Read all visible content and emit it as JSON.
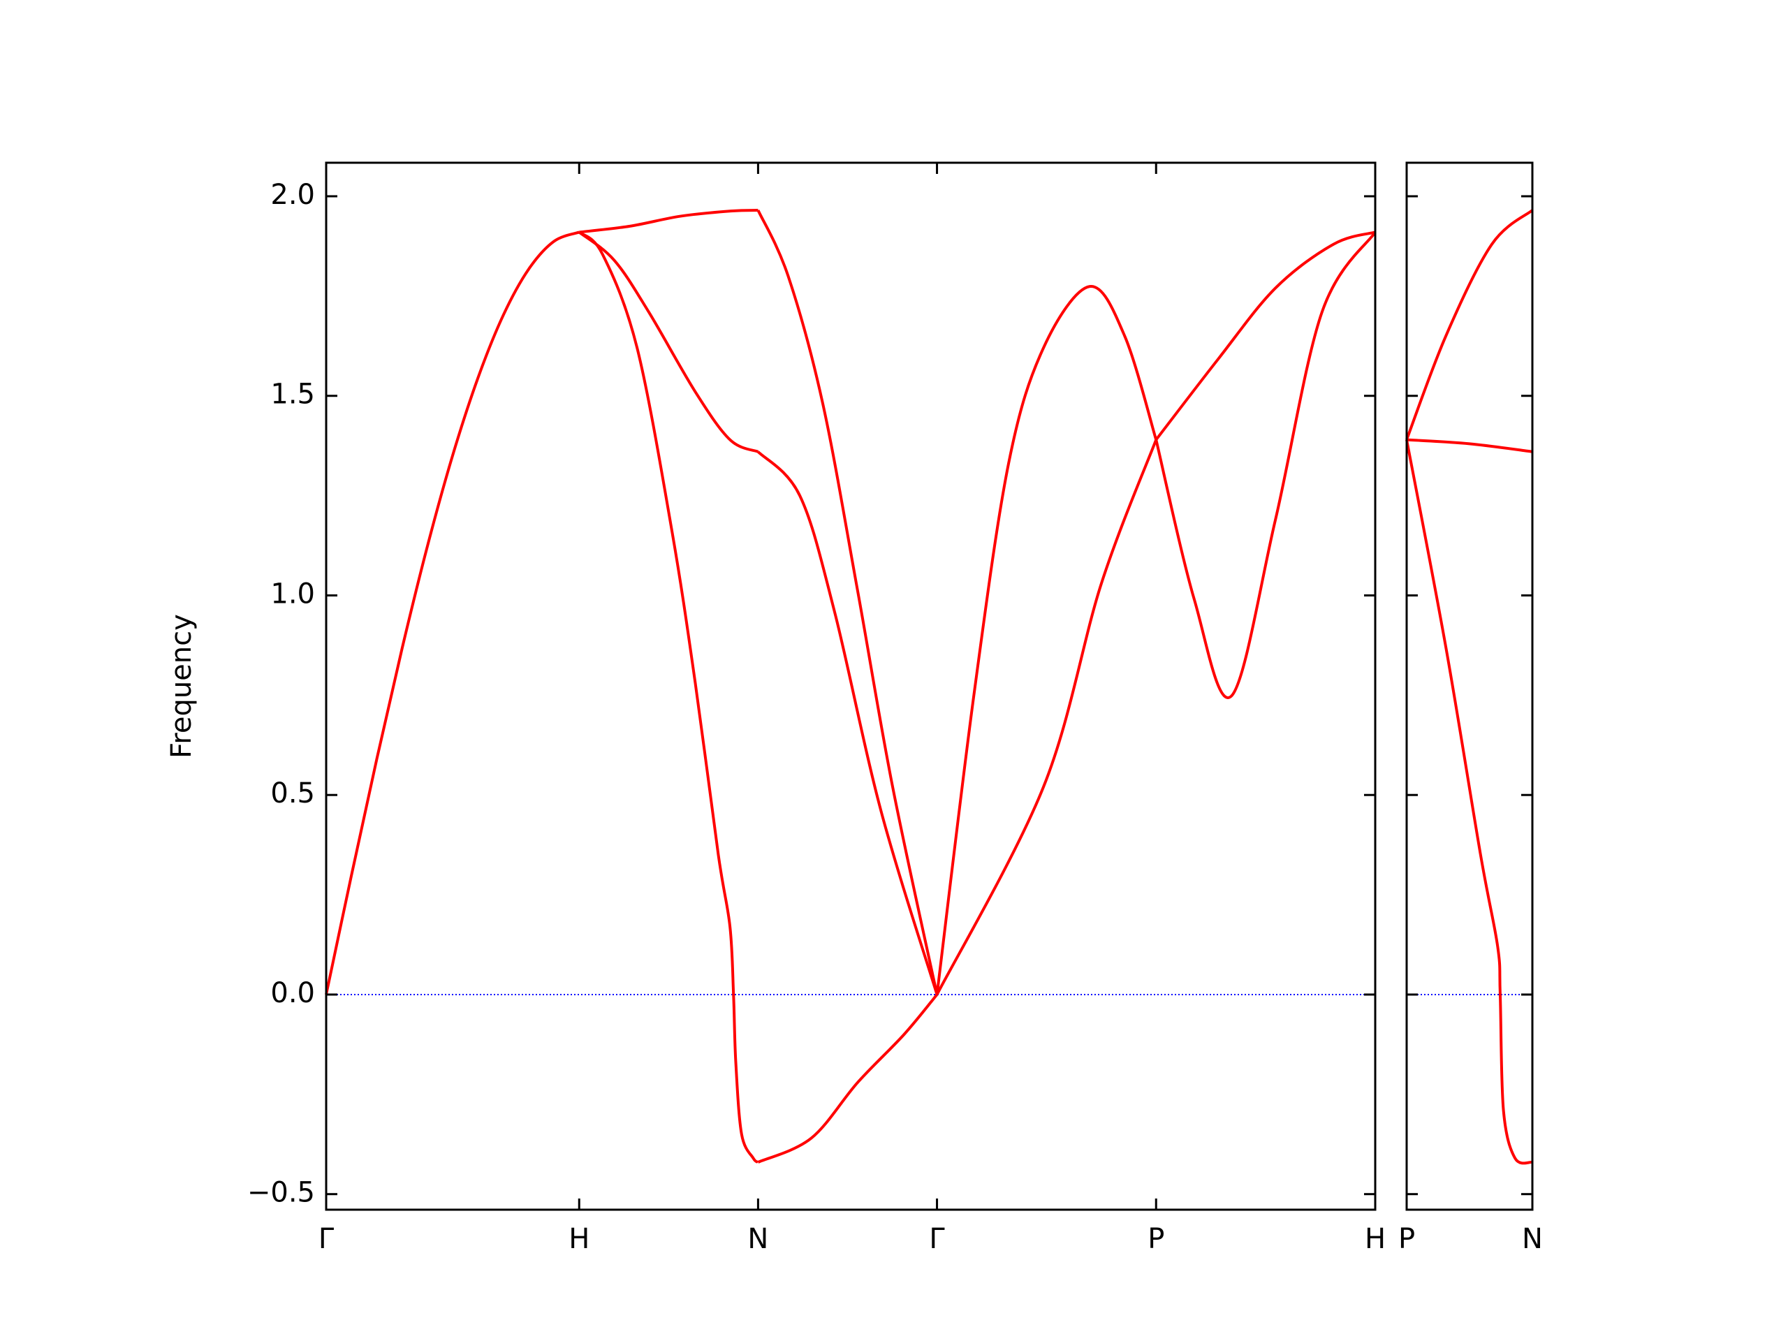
{
  "chart_data": [
    {
      "type": "line",
      "ylabel": "Frequency",
      "xlim": [
        0,
        4.1463
      ],
      "ylim": [
        -0.539,
        2.084
      ],
      "xticks": [
        {
          "value": 0,
          "label": "Γ"
        },
        {
          "value": 1,
          "label": "H"
        },
        {
          "value": 1.7071,
          "label": "N"
        },
        {
          "value": 2.4142,
          "label": "Γ"
        },
        {
          "value": 3.2802,
          "label": "P"
        },
        {
          "value": 4.1463,
          "label": "H"
        }
      ],
      "yticks": [
        {
          "value": -0.5,
          "label": "−0.5"
        },
        {
          "value": 0,
          "label": "0.0"
        },
        {
          "value": 0.5,
          "label": "0.5"
        },
        {
          "value": 1,
          "label": "1.0"
        },
        {
          "value": 1.5,
          "label": "1.5"
        },
        {
          "value": 2,
          "label": "2.0"
        }
      ],
      "show_ytick_labels": true,
      "hline": {
        "y": 0,
        "color": "blue"
      },
      "series": [
        {
          "color": "red",
          "x": [
            0,
            0.1,
            0.2,
            0.3,
            0.4,
            0.5,
            0.6,
            0.7,
            0.8,
            0.9,
            1
          ],
          "values": [
            0,
            0.299,
            0.59,
            0.867,
            1.123,
            1.351,
            1.545,
            1.702,
            1.817,
            1.887,
            1.91
          ]
        },
        {
          "color": "red",
          "x": [
            1,
            1.2,
            1.4,
            1.6,
            1.7071
          ],
          "values": [
            1.91,
            1.925,
            1.95,
            1.963,
            1.965
          ]
        },
        {
          "color": "red",
          "x": [
            1,
            1.138,
            1.275,
            1.459,
            1.596,
            1.7071
          ],
          "values": [
            1.91,
            1.84,
            1.71,
            1.51,
            1.39,
            1.36
          ]
        },
        {
          "color": "red",
          "x": [
            1,
            1.092,
            1.229,
            1.367,
            1.459,
            1.55,
            1.596,
            1.61,
            1.619,
            1.642,
            1.688,
            1.7071
          ],
          "values": [
            1.91,
            1.855,
            1.62,
            1.16,
            0.78,
            0.35,
            0.17,
            0,
            -0.17,
            -0.35,
            -0.41,
            -0.42
          ]
        },
        {
          "color": "red",
          "x": [
            1.7071,
            1.826,
            1.963,
            2.101,
            2.239,
            2.4142
          ],
          "values": [
            1.965,
            1.8,
            1.48,
            1.01,
            0.52,
            0
          ]
        },
        {
          "color": "red",
          "x": [
            1.7071,
            1.872,
            2.009,
            2.193,
            2.4142
          ],
          "values": [
            1.36,
            1.25,
            0.96,
            0.46,
            0
          ]
        },
        {
          "color": "red",
          "x": [
            1.7071,
            1.917,
            2.101,
            2.284,
            2.4142
          ],
          "values": [
            -0.42,
            -0.36,
            -0.22,
            -0.1,
            0
          ]
        },
        {
          "color": "red",
          "x": [
            2.4142,
            2.56,
            2.697,
            2.835,
            3.018,
            3.156,
            3.2802
          ],
          "values": [
            0,
            0.75,
            1.33,
            1.62,
            1.774,
            1.65,
            1.39
          ]
        },
        {
          "color": "red",
          "x": [
            2.4142,
            2.835,
            3.064,
            3.2802
          ],
          "values": [
            0,
            0.52,
            1.03,
            1.39
          ]
        },
        {
          "color": "red",
          "x": [
            3.2802,
            3.431,
            3.578,
            3.752,
            3.936,
            4.1463
          ],
          "values": [
            1.39,
            0.99,
            0.748,
            1.19,
            1.71,
            1.91
          ]
        },
        {
          "color": "red",
          "x": [
            3.2802,
            3.523,
            3.752,
            3.982,
            4.1463
          ],
          "values": [
            1.39,
            1.59,
            1.77,
            1.88,
            1.91
          ]
        }
      ]
    },
    {
      "type": "line",
      "xlim": [
        0,
        0.5
      ],
      "ylim": [
        -0.539,
        2.084
      ],
      "xticks": [
        {
          "value": 0,
          "label": "P"
        },
        {
          "value": 0.5,
          "label": "N"
        }
      ],
      "yticks": [
        -0.5,
        0,
        0.5,
        1,
        1.5,
        2
      ],
      "show_ytick_labels": false,
      "hline": {
        "y": 0,
        "color": "blue"
      },
      "series": [
        {
          "color": "red",
          "x": [
            0,
            0.156,
            0.339,
            0.5
          ],
          "values": [
            1.39,
            1.65,
            1.88,
            1.965
          ]
        },
        {
          "color": "red",
          "x": [
            0,
            0.25,
            0.5
          ],
          "values": [
            1.39,
            1.38,
            1.36
          ]
        },
        {
          "color": "red",
          "x": [
            0,
            0.156,
            0.294,
            0.362,
            0.372,
            0.385,
            0.431,
            0.5
          ],
          "values": [
            1.39,
            0.87,
            0.35,
            0.12,
            0,
            -0.29,
            -0.41,
            -0.42
          ]
        }
      ]
    }
  ]
}
